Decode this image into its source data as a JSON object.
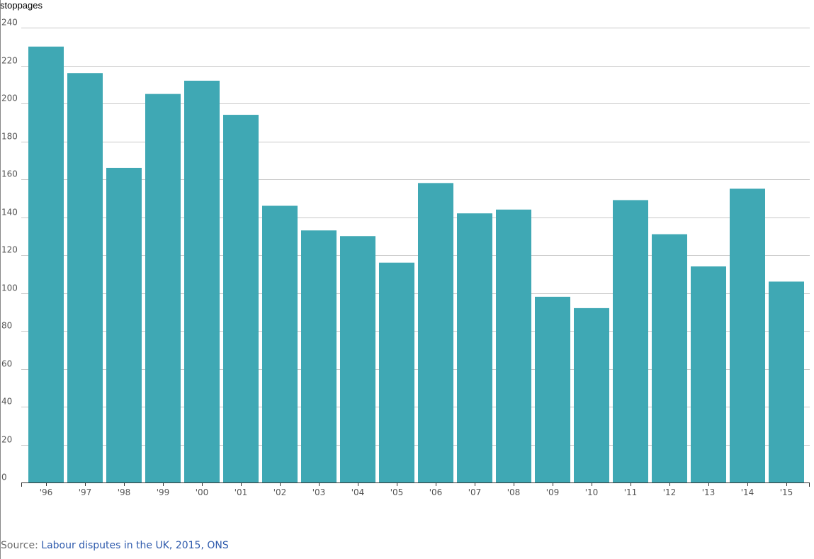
{
  "chart_data": {
    "type": "bar",
    "ylabel": "stoppages",
    "categories": [
      "'96",
      "'97",
      "'98",
      "'99",
      "'00",
      "'01",
      "'02",
      "'03",
      "'04",
      "'05",
      "'06",
      "'07",
      "'08",
      "'09",
      "'10",
      "'11",
      "'12",
      "'13",
      "'14",
      "'15"
    ],
    "values": [
      230,
      216,
      166,
      205,
      212,
      194,
      146,
      133,
      130,
      116,
      158,
      142,
      144,
      98,
      92,
      149,
      131,
      114,
      155,
      106
    ],
    "ylim": [
      0,
      240
    ],
    "yticks": [
      0,
      20,
      40,
      60,
      80,
      100,
      120,
      140,
      160,
      180,
      200,
      220,
      240
    ],
    "grid": true,
    "legend": "none",
    "bar_color": "#3fa8b4",
    "grid_color": "#c8c8c8"
  },
  "source": {
    "prefix": "Source: ",
    "link_text": "Labour disputes in the UK, 2015, ONS"
  }
}
